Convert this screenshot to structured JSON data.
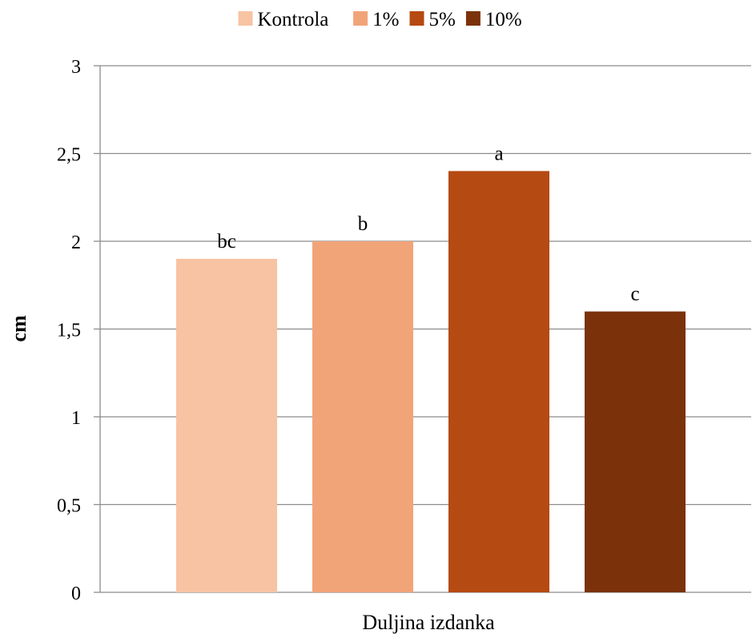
{
  "chart_data": {
    "type": "bar",
    "title": "",
    "xlabel": "Duljina izdanka",
    "ylabel": "cm",
    "ylim": [
      0,
      3
    ],
    "yticks": [
      0,
      0.5,
      1,
      1.5,
      2,
      2.5,
      3
    ],
    "ytick_labels": [
      "0",
      "0,5",
      "1",
      "1,5",
      "2",
      "2,5",
      "3"
    ],
    "grid": true,
    "legend": "top",
    "categories": [
      "Duljina izdanka"
    ],
    "series": [
      {
        "name": "Kontrola",
        "values": [
          1.9
        ],
        "color": "#f7c3a3",
        "label": "bc"
      },
      {
        "name": "1%",
        "values": [
          2.0
        ],
        "color": "#f2a479",
        "label": "b"
      },
      {
        "name": "5%",
        "values": [
          2.4
        ],
        "color": "#b54a12",
        "label": "a"
      },
      {
        "name": "10%",
        "values": [
          1.6
        ],
        "color": "#7b320a",
        "label": "c"
      }
    ]
  }
}
